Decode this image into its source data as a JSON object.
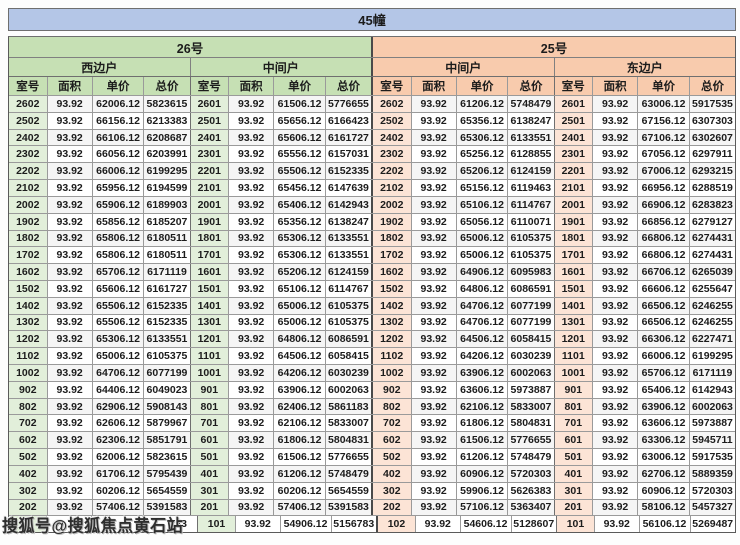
{
  "title": "45幢",
  "watermark": "搜狐号@搜狐焦点黄石站",
  "buildings": [
    {
      "label": "26号",
      "units": [
        "西边户",
        "中间户"
      ]
    },
    {
      "label": "25号",
      "units": [
        "中间户",
        "东边户"
      ]
    }
  ],
  "column_headers": [
    "室号",
    "面积",
    "单价",
    "总价"
  ],
  "colors": {
    "title_bg": "#b4c6e7",
    "building26_bg": "#c6e0b4",
    "building25_bg": "#f8cbad",
    "room_green": "#e2efda",
    "room_orange": "#fce4d6"
  },
  "sections": [
    {
      "building": "26号",
      "unit": "西边户",
      "rows": [
        [
          "2602",
          "93.92",
          "62006.12",
          "5823615"
        ],
        [
          "2502",
          "93.92",
          "66156.12",
          "6213383"
        ],
        [
          "2402",
          "93.92",
          "66106.12",
          "6208687"
        ],
        [
          "2302",
          "93.92",
          "66056.12",
          "6203991"
        ],
        [
          "2202",
          "93.92",
          "66006.12",
          "6199295"
        ],
        [
          "2102",
          "93.92",
          "65956.12",
          "6194599"
        ],
        [
          "2002",
          "93.92",
          "65906.12",
          "6189903"
        ],
        [
          "1902",
          "93.92",
          "65856.12",
          "6185207"
        ],
        [
          "1802",
          "93.92",
          "65806.12",
          "6180511"
        ],
        [
          "1702",
          "93.92",
          "65806.12",
          "6180511"
        ],
        [
          "1602",
          "93.92",
          "65706.12",
          "6171119"
        ],
        [
          "1502",
          "93.92",
          "65606.12",
          "6161727"
        ],
        [
          "1402",
          "93.92",
          "65506.12",
          "6152335"
        ],
        [
          "1302",
          "93.92",
          "65506.12",
          "6152335"
        ],
        [
          "1202",
          "93.92",
          "65306.12",
          "6133551"
        ],
        [
          "1102",
          "93.92",
          "65006.12",
          "6105375"
        ],
        [
          "1002",
          "93.92",
          "64706.12",
          "6077199"
        ],
        [
          "902",
          "93.92",
          "64406.12",
          "6049023"
        ],
        [
          "802",
          "93.92",
          "62906.12",
          "5908143"
        ],
        [
          "702",
          "93.92",
          "62606.12",
          "5879967"
        ],
        [
          "602",
          "93.92",
          "62306.12",
          "5851791"
        ],
        [
          "502",
          "93.92",
          "62006.12",
          "5823615"
        ],
        [
          "402",
          "93.92",
          "61706.12",
          "5795439"
        ],
        [
          "302",
          "93.92",
          "60206.12",
          "5654559"
        ],
        [
          "202",
          "93.92",
          "57406.12",
          "5391583"
        ],
        [
          "",
          "",
          "",
          "743"
        ]
      ]
    },
    {
      "building": "26号",
      "unit": "中间户",
      "rows": [
        [
          "2601",
          "93.92",
          "61506.12",
          "5776655"
        ],
        [
          "2501",
          "93.92",
          "65656.12",
          "6166423"
        ],
        [
          "2401",
          "93.92",
          "65606.12",
          "6161727"
        ],
        [
          "2301",
          "93.92",
          "65556.12",
          "6157031"
        ],
        [
          "2201",
          "93.92",
          "65506.12",
          "6152335"
        ],
        [
          "2101",
          "93.92",
          "65456.12",
          "6147639"
        ],
        [
          "2001",
          "93.92",
          "65406.12",
          "6142943"
        ],
        [
          "1901",
          "93.92",
          "65356.12",
          "6138247"
        ],
        [
          "1801",
          "93.92",
          "65306.12",
          "6133551"
        ],
        [
          "1701",
          "93.92",
          "65306.12",
          "6133551"
        ],
        [
          "1601",
          "93.92",
          "65206.12",
          "6124159"
        ],
        [
          "1501",
          "93.92",
          "65106.12",
          "6114767"
        ],
        [
          "1401",
          "93.92",
          "65006.12",
          "6105375"
        ],
        [
          "1301",
          "93.92",
          "65006.12",
          "6105375"
        ],
        [
          "1201",
          "93.92",
          "64806.12",
          "6086591"
        ],
        [
          "1101",
          "93.92",
          "64506.12",
          "6058415"
        ],
        [
          "1001",
          "93.92",
          "64206.12",
          "6030239"
        ],
        [
          "901",
          "93.92",
          "63906.12",
          "6002063"
        ],
        [
          "801",
          "93.92",
          "62406.12",
          "5861183"
        ],
        [
          "701",
          "93.92",
          "62106.12",
          "5833007"
        ],
        [
          "601",
          "93.92",
          "61806.12",
          "5804831"
        ],
        [
          "501",
          "93.92",
          "61506.12",
          "5776655"
        ],
        [
          "401",
          "93.92",
          "61206.12",
          "5748479"
        ],
        [
          "301",
          "93.92",
          "60206.12",
          "5654559"
        ],
        [
          "201",
          "93.92",
          "57406.12",
          "5391583"
        ],
        [
          "101",
          "93.92",
          "54906.12",
          "5156783"
        ]
      ]
    },
    {
      "building": "25号",
      "unit": "中间户",
      "rows": [
        [
          "2602",
          "93.92",
          "61206.12",
          "5748479"
        ],
        [
          "2502",
          "93.92",
          "65356.12",
          "6138247"
        ],
        [
          "2402",
          "93.92",
          "65306.12",
          "6133551"
        ],
        [
          "2302",
          "93.92",
          "65256.12",
          "6128855"
        ],
        [
          "2202",
          "93.92",
          "65206.12",
          "6124159"
        ],
        [
          "2102",
          "93.92",
          "65156.12",
          "6119463"
        ],
        [
          "2002",
          "93.92",
          "65106.12",
          "6114767"
        ],
        [
          "1902",
          "93.92",
          "65056.12",
          "6110071"
        ],
        [
          "1802",
          "93.92",
          "65006.12",
          "6105375"
        ],
        [
          "1702",
          "93.92",
          "65006.12",
          "6105375"
        ],
        [
          "1602",
          "93.92",
          "64906.12",
          "6095983"
        ],
        [
          "1502",
          "93.92",
          "64806.12",
          "6086591"
        ],
        [
          "1402",
          "93.92",
          "64706.12",
          "6077199"
        ],
        [
          "1302",
          "93.92",
          "64706.12",
          "6077199"
        ],
        [
          "1202",
          "93.92",
          "64506.12",
          "6058415"
        ],
        [
          "1102",
          "93.92",
          "64206.12",
          "6030239"
        ],
        [
          "1002",
          "93.92",
          "63906.12",
          "6002063"
        ],
        [
          "902",
          "93.92",
          "63606.12",
          "5973887"
        ],
        [
          "802",
          "93.92",
          "62106.12",
          "5833007"
        ],
        [
          "702",
          "93.92",
          "61806.12",
          "5804831"
        ],
        [
          "602",
          "93.92",
          "61506.12",
          "5776655"
        ],
        [
          "502",
          "93.92",
          "61206.12",
          "5748479"
        ],
        [
          "402",
          "93.92",
          "60906.12",
          "5720303"
        ],
        [
          "302",
          "93.92",
          "59906.12",
          "5626383"
        ],
        [
          "202",
          "93.92",
          "57106.12",
          "5363407"
        ],
        [
          "102",
          "93.92",
          "54606.12",
          "5128607"
        ]
      ]
    },
    {
      "building": "25号",
      "unit": "东边户",
      "rows": [
        [
          "2601",
          "93.92",
          "63006.12",
          "5917535"
        ],
        [
          "2501",
          "93.92",
          "67156.12",
          "6307303"
        ],
        [
          "2401",
          "93.92",
          "67106.12",
          "6302607"
        ],
        [
          "2301",
          "93.92",
          "67056.12",
          "6297911"
        ],
        [
          "2201",
          "93.92",
          "67006.12",
          "6293215"
        ],
        [
          "2101",
          "93.92",
          "66956.12",
          "6288519"
        ],
        [
          "2001",
          "93.92",
          "66906.12",
          "6283823"
        ],
        [
          "1901",
          "93.92",
          "66856.12",
          "6279127"
        ],
        [
          "1801",
          "93.92",
          "66806.12",
          "6274431"
        ],
        [
          "1701",
          "93.92",
          "66806.12",
          "6274431"
        ],
        [
          "1601",
          "93.92",
          "66706.12",
          "6265039"
        ],
        [
          "1501",
          "93.92",
          "66606.12",
          "6255647"
        ],
        [
          "1401",
          "93.92",
          "66506.12",
          "6246255"
        ],
        [
          "1301",
          "93.92",
          "66506.12",
          "6246255"
        ],
        [
          "1201",
          "93.92",
          "66306.12",
          "6227471"
        ],
        [
          "1101",
          "93.92",
          "66006.12",
          "6199295"
        ],
        [
          "1001",
          "93.92",
          "65706.12",
          "6171119"
        ],
        [
          "901",
          "93.92",
          "65406.12",
          "6142943"
        ],
        [
          "801",
          "93.92",
          "63906.12",
          "6002063"
        ],
        [
          "701",
          "93.92",
          "63606.12",
          "5973887"
        ],
        [
          "601",
          "93.92",
          "63306.12",
          "5945711"
        ],
        [
          "501",
          "93.92",
          "63006.12",
          "5917535"
        ],
        [
          "401",
          "93.92",
          "62706.12",
          "5889359"
        ],
        [
          "301",
          "93.92",
          "60906.12",
          "5720303"
        ],
        [
          "201",
          "93.92",
          "58106.12",
          "5457327"
        ],
        [
          "101",
          "93.92",
          "56106.12",
          "5269487"
        ]
      ]
    }
  ]
}
